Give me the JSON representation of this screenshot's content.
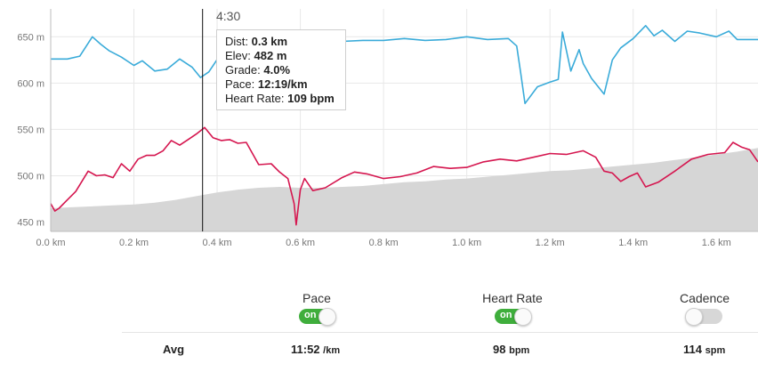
{
  "chart_data": {
    "type": "line",
    "xlabel": "",
    "ylabel": "",
    "x_ticks": [
      "0.0 km",
      "0.2 km",
      "0.4 km",
      "0.6 km",
      "0.8 km",
      "1.0 km",
      "1.2 km",
      "1.4 km",
      "1.6 km"
    ],
    "x_tick_values": [
      0.0,
      0.2,
      0.4,
      0.6,
      0.8,
      1.0,
      1.2,
      1.4,
      1.6
    ],
    "y_ticks": [
      "450 m",
      "500 m",
      "550 m",
      "600 m",
      "650 m"
    ],
    "y_tick_values": [
      450,
      500,
      550,
      600,
      650
    ],
    "xlim": [
      0.0,
      1.7
    ],
    "ylim": [
      440,
      680
    ],
    "grid": true,
    "cursor_x": 0.365,
    "series": [
      {
        "name": "Elevation",
        "style": "area",
        "color": "#d6d6d6",
        "x": [
          0.0,
          0.05,
          0.1,
          0.15,
          0.2,
          0.25,
          0.3,
          0.35,
          0.4,
          0.45,
          0.5,
          0.55,
          0.6,
          0.65,
          0.7,
          0.75,
          0.8,
          0.85,
          0.9,
          0.95,
          1.0,
          1.05,
          1.1,
          1.15,
          1.2,
          1.25,
          1.3,
          1.35,
          1.4,
          1.45,
          1.5,
          1.55,
          1.6,
          1.65,
          1.7
        ],
        "values": [
          465,
          466,
          467,
          468,
          469,
          471,
          474,
          478,
          482,
          485,
          487,
          488,
          487,
          487,
          488,
          489,
          491,
          493,
          494,
          496,
          497,
          499,
          501,
          503,
          505,
          506,
          508,
          510,
          512,
          514,
          517,
          520,
          523,
          526,
          530
        ]
      },
      {
        "name": "Pace",
        "color": "#3aabd9",
        "x": [
          0.0,
          0.04,
          0.07,
          0.1,
          0.12,
          0.14,
          0.17,
          0.2,
          0.22,
          0.25,
          0.28,
          0.31,
          0.34,
          0.36,
          0.38,
          0.41,
          0.44,
          0.47,
          0.5,
          0.53,
          0.56,
          0.59,
          0.61,
          0.63,
          0.66,
          0.7,
          0.75,
          0.8,
          0.85,
          0.9,
          0.95,
          1.0,
          1.05,
          1.1,
          1.12,
          1.13,
          1.14,
          1.17,
          1.2,
          1.22,
          1.23,
          1.25,
          1.27,
          1.28,
          1.3,
          1.33,
          1.35,
          1.37,
          1.4,
          1.43,
          1.45,
          1.47,
          1.5,
          1.53,
          1.56,
          1.6,
          1.63,
          1.65,
          1.7
        ],
        "values": [
          626,
          626,
          629,
          650,
          642,
          635,
          628,
          619,
          624,
          613,
          615,
          626,
          617,
          606,
          612,
          632,
          625,
          633,
          627,
          642,
          637,
          649,
          655,
          652,
          648,
          645,
          646,
          646,
          648,
          646,
          647,
          650,
          647,
          648,
          640,
          610,
          578,
          596,
          601,
          604,
          655,
          613,
          636,
          621,
          605,
          588,
          625,
          638,
          648,
          662,
          651,
          657,
          645,
          656,
          654,
          650,
          656,
          647,
          647
        ]
      },
      {
        "name": "Heart Rate",
        "color": "#d5164f",
        "x": [
          0.0,
          0.01,
          0.02,
          0.04,
          0.06,
          0.09,
          0.11,
          0.13,
          0.15,
          0.17,
          0.19,
          0.21,
          0.23,
          0.25,
          0.27,
          0.29,
          0.31,
          0.33,
          0.35,
          0.37,
          0.39,
          0.41,
          0.43,
          0.45,
          0.47,
          0.5,
          0.53,
          0.55,
          0.57,
          0.585,
          0.59,
          0.6,
          0.61,
          0.63,
          0.66,
          0.7,
          0.73,
          0.76,
          0.8,
          0.84,
          0.88,
          0.92,
          0.96,
          1.0,
          1.04,
          1.08,
          1.12,
          1.16,
          1.2,
          1.24,
          1.28,
          1.31,
          1.33,
          1.35,
          1.37,
          1.39,
          1.41,
          1.43,
          1.46,
          1.5,
          1.54,
          1.58,
          1.62,
          1.64,
          1.66,
          1.68,
          1.7
        ],
        "values": [
          470,
          462,
          465,
          474,
          483,
          505,
          500,
          501,
          498,
          513,
          505,
          518,
          522,
          522,
          527,
          538,
          533,
          539,
          545,
          552,
          541,
          538,
          539,
          535,
          536,
          512,
          513,
          504,
          497,
          470,
          447,
          485,
          497,
          484,
          487,
          498,
          504,
          502,
          497,
          499,
          503,
          510,
          508,
          509,
          515,
          518,
          516,
          520,
          524,
          523,
          527,
          520,
          505,
          503,
          494,
          499,
          503,
          488,
          493,
          505,
          518,
          523,
          525,
          536,
          531,
          528,
          515
        ]
      }
    ]
  },
  "tooltip": {
    "time": "4:30",
    "dist_label": "Dist:",
    "dist_value": "0.3 km",
    "elev_label": "Elev:",
    "elev_value": "482 m",
    "grade_label": "Grade:",
    "grade_value": "4.0%",
    "pace_label": "Pace:",
    "pace_value": "12:19/km",
    "hr_label": "Heart Rate:",
    "hr_value": "109 bpm"
  },
  "toggles": {
    "pace": {
      "label": "Pace",
      "state": "on"
    },
    "heart_rate": {
      "label": "Heart Rate",
      "state": "on"
    },
    "cadence": {
      "label": "Cadence",
      "state": ""
    }
  },
  "avg": {
    "label": "Avg",
    "pace_value": "11:52",
    "pace_unit": "/km",
    "hr_value": "98",
    "hr_unit": "bpm",
    "cadence_value": "114",
    "cadence_unit": "spm"
  },
  "colors": {
    "pace": "#3aabd9",
    "heart_rate": "#d5164f",
    "elevation": "#d6d6d6",
    "toggle_on": "#3fae3c"
  }
}
